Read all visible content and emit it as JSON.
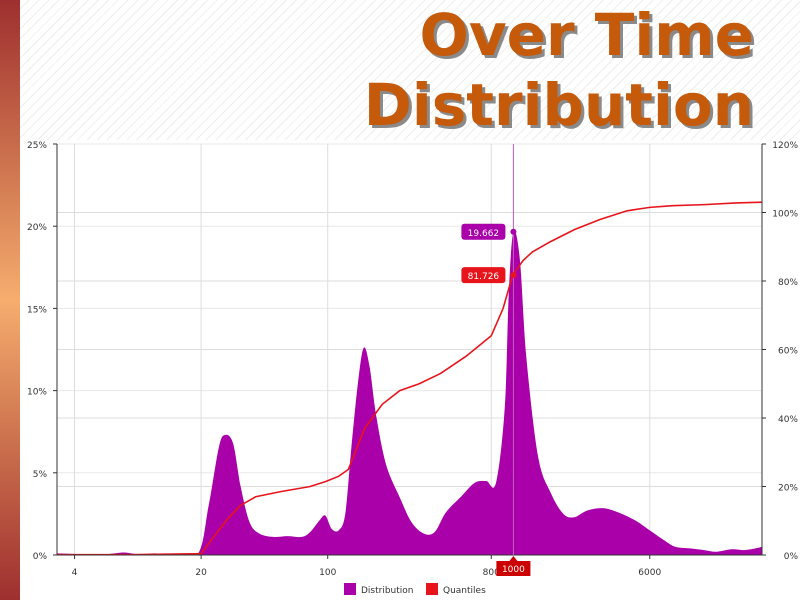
{
  "title": {
    "line1": "Over Time",
    "line2": "Distribution"
  },
  "colors": {
    "distribution": "#aa00aa",
    "quantiles": "#e8141c",
    "title": "#c45a0a",
    "grid": "#dddddd"
  },
  "chart_data": {
    "type": "area",
    "x_scale": "log",
    "x_range": [
      3.2,
      25000
    ],
    "x_ticks": [
      {
        "value": 4,
        "label": "4"
      },
      {
        "value": 20,
        "label": "20"
      },
      {
        "value": 100,
        "label": "100"
      },
      {
        "value": 800,
        "label": "800"
      },
      {
        "value": 6000,
        "label": "6000"
      }
    ],
    "y_left": {
      "min": 0,
      "max": 25,
      "ticks": [
        0,
        5,
        10,
        15,
        20,
        25
      ],
      "tick_labels": [
        "0%",
        "5%",
        "10%",
        "15%",
        "20%",
        "25%"
      ]
    },
    "y_right": {
      "min": 0,
      "max": 120,
      "ticks": [
        0,
        20,
        40,
        60,
        80,
        100,
        120
      ],
      "tick_labels": [
        "0%",
        "20%",
        "40%",
        "60%",
        "80%",
        "100%",
        "120%"
      ]
    },
    "grid": true,
    "legend_placement": "bottom-center",
    "series": [
      {
        "name": "Distribution",
        "type": "area",
        "axis": "left",
        "points": [
          [
            3.2,
            0.1
          ],
          [
            4.5,
            0.05
          ],
          [
            6,
            0.05
          ],
          [
            7.5,
            0.15
          ],
          [
            9,
            0.05
          ],
          [
            11,
            0.1
          ],
          [
            13,
            0.05
          ],
          [
            19,
            0
          ],
          [
            22,
            3
          ],
          [
            25,
            6.5
          ],
          [
            27,
            7.3
          ],
          [
            30,
            6.8
          ],
          [
            33,
            4.2
          ],
          [
            37,
            2
          ],
          [
            42,
            1.3
          ],
          [
            50,
            1.1
          ],
          [
            60,
            1.15
          ],
          [
            72,
            1.1
          ],
          [
            80,
            1.4
          ],
          [
            90,
            2.1
          ],
          [
            97,
            2.4
          ],
          [
            105,
            1.6
          ],
          [
            115,
            1.5
          ],
          [
            125,
            2.5
          ],
          [
            135,
            6.5
          ],
          [
            147,
            10.5
          ],
          [
            158,
            12.6
          ],
          [
            170,
            11.5
          ],
          [
            185,
            8.5
          ],
          [
            210,
            5.5
          ],
          [
            250,
            3.5
          ],
          [
            290,
            2
          ],
          [
            340,
            1.3
          ],
          [
            390,
            1.4
          ],
          [
            450,
            2.6
          ],
          [
            550,
            3.6
          ],
          [
            650,
            4.4
          ],
          [
            750,
            4.5
          ],
          [
            850,
            4.4
          ],
          [
            950,
            9
          ],
          [
            1000,
            16
          ],
          [
            1060,
            19.662
          ],
          [
            1150,
            18
          ],
          [
            1250,
            12
          ],
          [
            1450,
            6
          ],
          [
            1700,
            3.8
          ],
          [
            2000,
            2.5
          ],
          [
            2300,
            2.3
          ],
          [
            2700,
            2.7
          ],
          [
            3300,
            2.85
          ],
          [
            4000,
            2.6
          ],
          [
            5000,
            2.1
          ],
          [
            6000,
            1.5
          ],
          [
            7200,
            0.9
          ],
          [
            8300,
            0.5
          ],
          [
            10000,
            0.4
          ],
          [
            12000,
            0.3
          ],
          [
            14000,
            0.2
          ],
          [
            17000,
            0.35
          ],
          [
            20000,
            0.3
          ],
          [
            23000,
            0.4
          ],
          [
            25000,
            0.5
          ]
        ]
      },
      {
        "name": "Quantiles",
        "type": "line",
        "axis": "right",
        "points": [
          [
            3.2,
            0.1
          ],
          [
            8,
            0.1
          ],
          [
            20,
            0.4
          ],
          [
            24,
            6
          ],
          [
            28,
            10.5
          ],
          [
            33,
            14.5
          ],
          [
            40,
            17
          ],
          [
            55,
            18.5
          ],
          [
            80,
            20
          ],
          [
            98,
            21.5
          ],
          [
            115,
            23
          ],
          [
            130,
            25
          ],
          [
            160,
            37
          ],
          [
            200,
            44
          ],
          [
            250,
            48
          ],
          [
            320,
            50
          ],
          [
            420,
            53
          ],
          [
            580,
            58
          ],
          [
            800,
            64
          ],
          [
            930,
            72
          ],
          [
            1050,
            81.726
          ],
          [
            1200,
            86
          ],
          [
            1350,
            88.5
          ],
          [
            1700,
            91.5
          ],
          [
            2300,
            95
          ],
          [
            3200,
            98
          ],
          [
            4500,
            100.5
          ],
          [
            6000,
            101.5
          ],
          [
            8000,
            102
          ],
          [
            12000,
            102.3
          ],
          [
            18000,
            102.8
          ],
          [
            25000,
            103
          ]
        ]
      }
    ],
    "crosshair": {
      "x": 1060,
      "x_label": "1000",
      "distribution_value_label": "19.662",
      "quantile_value_label": "81.726"
    }
  }
}
